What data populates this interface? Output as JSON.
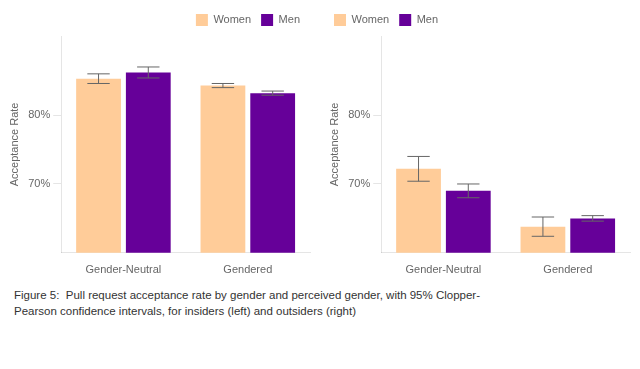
{
  "chart_data": [
    {
      "type": "bar",
      "categories": [
        "Gender-Neutral",
        "Gendered"
      ],
      "series": [
        {
          "name": "Women",
          "color": "#FFCC99",
          "values": [
            0.853,
            0.843
          ],
          "errors": [
            0.007,
            0.003
          ]
        },
        {
          "name": "Men",
          "color": "#660099",
          "values": [
            0.862,
            0.832
          ],
          "errors": [
            0.008,
            0.003
          ]
        }
      ],
      "ylabel": "Acceptance Rate",
      "ylim": [
        0.6,
        0.915
      ],
      "yticks": [
        {
          "value": 0.7,
          "label": "70%"
        },
        {
          "value": 0.8,
          "label": "80%"
        }
      ],
      "grid": false,
      "legend": "upper right"
    },
    {
      "type": "bar",
      "categories": [
        "Gender-Neutral",
        "Gendered"
      ],
      "series": [
        {
          "name": "Women",
          "color": "#FFCC99",
          "values": [
            0.722,
            0.638
          ],
          "errors": [
            0.018,
            0.014
          ]
        },
        {
          "name": "Men",
          "color": "#660099",
          "values": [
            0.69,
            0.65
          ],
          "errors": [
            0.01,
            0.004
          ]
        }
      ],
      "ylabel": "Acceptance Rate",
      "ylim": [
        0.6,
        0.915
      ],
      "yticks": [
        {
          "value": 0.7,
          "label": "70%"
        },
        {
          "value": 0.8,
          "label": "80%"
        }
      ],
      "grid": false,
      "legend": "upper left"
    }
  ],
  "caption": "Figure 5:  Pull request acceptance rate by gender and perceived gender, with 95% Clopper-\nPearson confidence intervals, for insiders (left) and outsiders (right)"
}
